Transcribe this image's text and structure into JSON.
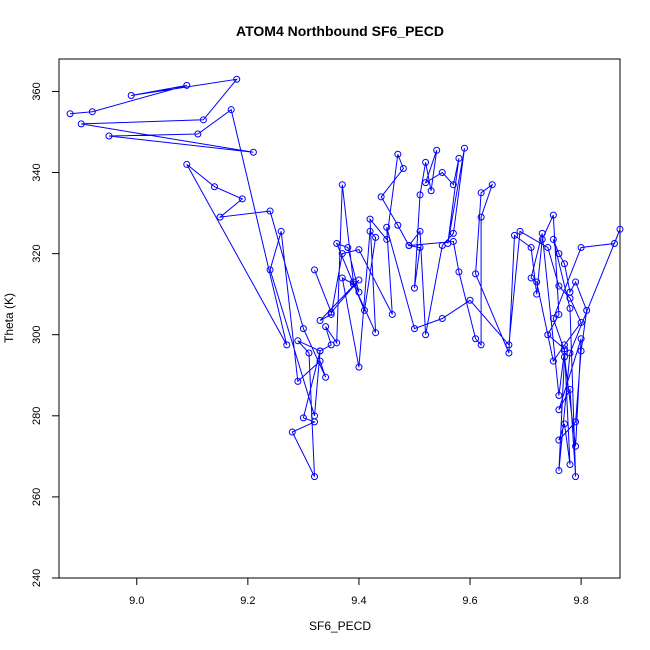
{
  "chart_data": {
    "type": "line",
    "title": "ATOM4 Northbound SF6_PECD",
    "xlabel": "SF6_PECD",
    "ylabel": "Theta (K)",
    "xlim": [
      8.86,
      9.87
    ],
    "ylim": [
      240,
      368
    ],
    "xticks": [
      "9.0",
      "9.2",
      "9.4",
      "9.6",
      "9.8"
    ],
    "yticks": [
      "240",
      "260",
      "280",
      "300",
      "320",
      "340",
      "360"
    ],
    "grid": false,
    "legend": "none",
    "series": [
      {
        "color": "#0000ff",
        "marker": "open-circle",
        "x": [
          8.88,
          8.92,
          9.09,
          8.99,
          9.18,
          9.12,
          8.9,
          9.21,
          8.95,
          9.11,
          9.17,
          9.27,
          9.09,
          9.14,
          9.19,
          9.15,
          9.24,
          9.3,
          9.34,
          9.33,
          9.29,
          9.26,
          9.24,
          9.32,
          9.33,
          9.3,
          9.32,
          9.28,
          9.32,
          9.31,
          9.29,
          9.33,
          9.35,
          9.34,
          9.36,
          9.37,
          9.39,
          9.4,
          9.38,
          9.36,
          9.41,
          9.43,
          9.42,
          9.4,
          9.37,
          9.39,
          9.43,
          9.42,
          9.45,
          9.47,
          9.48,
          9.44,
          9.47,
          9.49,
          9.51,
          9.5,
          9.51,
          9.52,
          9.53,
          9.54,
          9.52,
          9.55,
          9.57,
          9.58,
          9.56,
          9.59,
          9.57,
          9.55,
          9.52,
          9.51,
          9.49,
          9.57,
          9.58,
          9.61,
          9.62,
          9.62,
          9.64,
          9.62,
          9.61,
          9.67,
          9.68,
          9.71,
          9.72,
          9.73,
          9.75,
          9.76,
          9.74,
          9.77,
          9.78,
          9.77,
          9.76,
          9.79,
          9.8,
          9.81,
          9.79,
          9.78,
          9.77,
          9.76,
          9.75,
          9.78,
          9.79,
          9.78,
          9.76,
          9.8,
          9.79,
          9.77,
          9.76,
          9.78,
          9.87,
          9.86,
          9.8,
          9.75,
          9.77,
          9.76,
          9.73,
          9.71,
          9.72,
          9.75,
          9.77,
          9.8,
          9.78,
          9.76,
          9.74,
          9.69,
          9.67,
          9.6,
          9.55,
          9.5,
          9.45,
          9.46,
          9.4,
          9.37,
          9.35,
          9.33,
          9.4,
          9.35,
          9.32
        ],
        "y": [
          354.5,
          355.0,
          361.5,
          359.0,
          363.0,
          353.0,
          352.0,
          345.0,
          349.0,
          349.5,
          355.5,
          297.5,
          342.0,
          336.5,
          333.5,
          329.0,
          330.5,
          301.5,
          289.5,
          293.5,
          288.5,
          325.5,
          316.0,
          280.0,
          296.0,
          279.5,
          278.5,
          276.0,
          265.0,
          295.5,
          298.5,
          296.0,
          297.5,
          302.0,
          298.0,
          337.0,
          313.0,
          310.5,
          321.5,
          322.5,
          306.0,
          324.0,
          325.5,
          292.0,
          314.0,
          312.5,
          300.5,
          328.5,
          323.5,
          344.5,
          341.0,
          334.0,
          327.0,
          322.0,
          321.5,
          311.5,
          334.5,
          342.5,
          335.5,
          345.5,
          337.5,
          340.0,
          337.0,
          343.5,
          322.5,
          346.0,
          325.0,
          322.0,
          300.0,
          325.5,
          322.0,
          323.0,
          315.5,
          299.0,
          297.5,
          329.0,
          337.0,
          335.0,
          315.0,
          295.5,
          324.5,
          321.5,
          310.0,
          323.5,
          329.5,
          305.0,
          300.0,
          296.5,
          268.0,
          278.0,
          274.0,
          278.5,
          296.0,
          306.0,
          313.0,
          310.5,
          317.5,
          320.0,
          323.5,
          306.5,
          265.0,
          286.5,
          281.5,
          299.0,
          272.5,
          294.5,
          266.5,
          295.5,
          326.0,
          322.5,
          321.5,
          304.0,
          296.0,
          285.0,
          325.0,
          314.0,
          313.0,
          293.5,
          297.5,
          303.0,
          309.0,
          312.0,
          321.5,
          325.5,
          297.5,
          308.5,
          304.0,
          301.5,
          326.5,
          305.0,
          321.0,
          320.0,
          305.0,
          303.5,
          313.5,
          305.5,
          316.0
        ]
      }
    ]
  }
}
